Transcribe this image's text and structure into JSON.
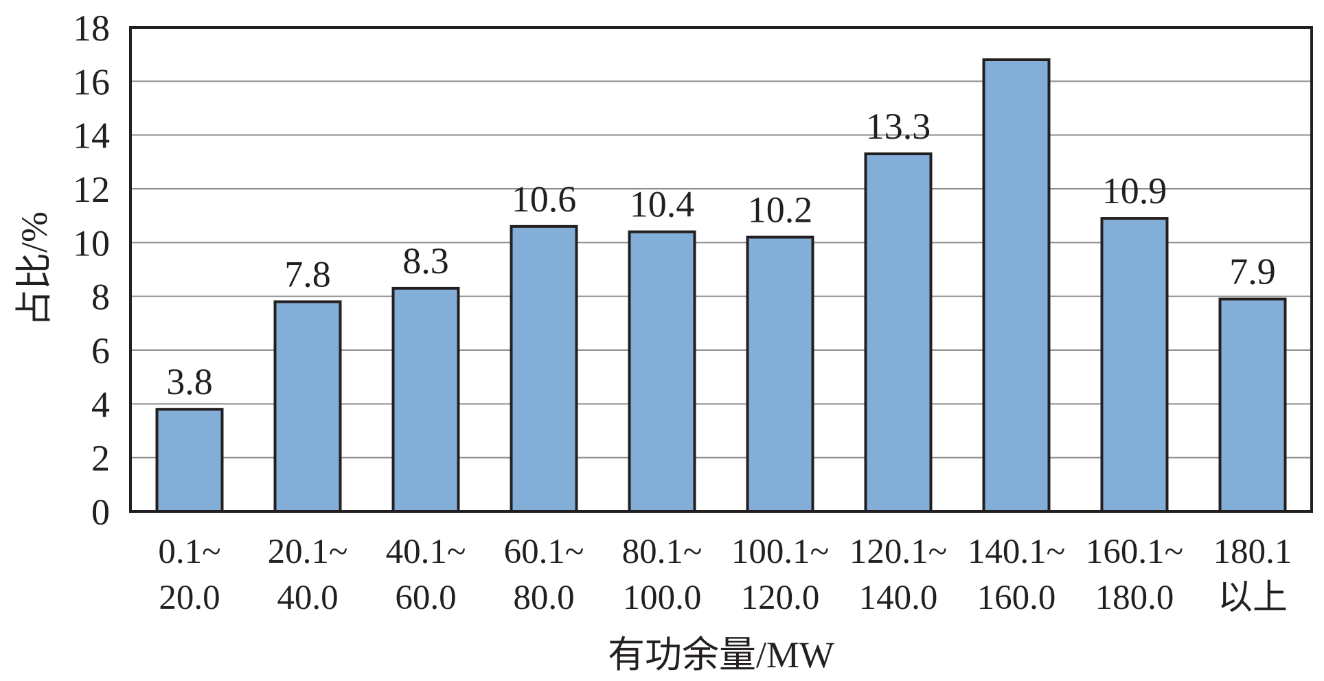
{
  "chart_data": {
    "type": "bar",
    "categories": [
      [
        "0.1~",
        "20.0"
      ],
      [
        "20.1~",
        "40.0"
      ],
      [
        "40.1~",
        "60.0"
      ],
      [
        "60.1~",
        "80.0"
      ],
      [
        "80.1~",
        "100.0"
      ],
      [
        "100.1~",
        "120.0"
      ],
      [
        "120.1~",
        "140.0"
      ],
      [
        "140.1~",
        "160.0"
      ],
      [
        "160.1~",
        "180.0"
      ],
      [
        "180.1",
        "以上"
      ]
    ],
    "values": [
      3.8,
      7.8,
      8.3,
      10.6,
      10.4,
      10.2,
      13.3,
      16.8,
      10.9,
      7.9
    ],
    "data_labels": [
      "3.8",
      "7.8",
      "8.3",
      "10.6",
      "10.4",
      "10.2",
      "13.3",
      "",
      "10.9",
      "7.9"
    ],
    "xlabel": "有功余量/MW",
    "ylabel": "占比/%",
    "ylim": [
      0,
      18
    ],
    "yticks": [
      0,
      2,
      4,
      6,
      8,
      10,
      12,
      14,
      16,
      18
    ],
    "grid": true,
    "bar_color": "#83AED8",
    "edge_color": "#231F20"
  }
}
